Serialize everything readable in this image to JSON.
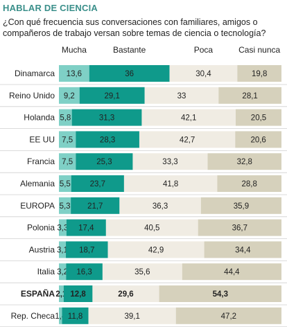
{
  "header": {
    "title": "HABLAR DE CIENCIA",
    "subtitle": "¿Con qué frecuencia sus conversaciones con familiares, amigos o compañeros de trabajo versan sobre temas de ciencia o tecnología?"
  },
  "colors": {
    "mucha": "#7fd0c6",
    "bastante": "#0f9a8b",
    "poca": "#f0ece3",
    "casi_nunca": "#d6d1bc",
    "title": "#3a8f8a",
    "divider": "#cfcfcf"
  },
  "chart_data": {
    "type": "bar",
    "orientation": "horizontal",
    "stacked": true,
    "title": "HABLAR DE CIENCIA",
    "categories": [
      "Dinamarca",
      "Reino Unido",
      "Holanda",
      "EE UU",
      "Francia",
      "Alemania",
      "EUROPA",
      "Polonia",
      "Austria",
      "Italia",
      "ESPAÑA",
      "Rep. Checa"
    ],
    "highlight": "ESPAÑA",
    "value_labels": [
      [
        "13,6",
        "36",
        "30,4",
        "19,8"
      ],
      [
        "9,2",
        "29,1",
        "33",
        "28,1"
      ],
      [
        "5,8",
        "31,3",
        "42,1",
        "20,5"
      ],
      [
        "7,5",
        "28,3",
        "42,7",
        "20,6"
      ],
      [
        "7,5",
        "25,3",
        "33,3",
        "32,8"
      ],
      [
        "5,5",
        "23,7",
        "41,8",
        "28,8"
      ],
      [
        "5,3",
        "21,7",
        "36,3",
        "35,9"
      ],
      [
        "3,3",
        "17,4",
        "40,5",
        "36,7"
      ],
      [
        "3,1",
        "18,7",
        "42,9",
        "34,4"
      ],
      [
        "3,2",
        "16,3",
        "35,6",
        "44,4"
      ],
      [
        "2,1",
        "12,8",
        "29,6",
        "54,3"
      ],
      [
        "1,4",
        "11,8",
        "39,1",
        "47,2"
      ]
    ],
    "series": [
      {
        "name": "Mucha",
        "values": [
          13.6,
          9.2,
          5.8,
          7.5,
          7.5,
          5.5,
          5.3,
          3.3,
          3.1,
          3.2,
          2.1,
          1.4
        ]
      },
      {
        "name": "Bastante",
        "values": [
          36,
          29.1,
          31.3,
          28.3,
          25.3,
          23.7,
          21.7,
          17.4,
          18.7,
          16.3,
          12.8,
          11.8
        ]
      },
      {
        "name": "Poca",
        "values": [
          30.4,
          33,
          42.1,
          42.7,
          33.3,
          41.8,
          36.3,
          40.5,
          42.9,
          35.6,
          29.6,
          39.1
        ]
      },
      {
        "name": "Casi nunca",
        "values": [
          19.8,
          28.1,
          20.5,
          20.6,
          32.8,
          28.8,
          35.9,
          36.7,
          34.4,
          44.4,
          54.3,
          47.2
        ]
      }
    ]
  }
}
